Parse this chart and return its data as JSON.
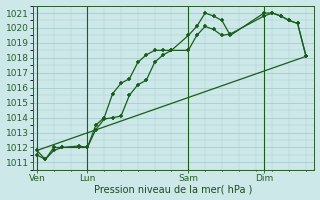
{
  "bg_color": "#cce8e8",
  "grid_color": "#aacccc",
  "line_color": "#1a5c1a",
  "marker_color": "#1a5c1a",
  "xlabel": "Pression niveau de la mer( hPa )",
  "ylim": [
    1010.5,
    1021.5
  ],
  "yticks": [
    1011,
    1012,
    1013,
    1014,
    1015,
    1016,
    1017,
    1018,
    1019,
    1020,
    1021
  ],
  "xtick_labels": [
    "Ven",
    "Lun",
    "Sam",
    "Dim"
  ],
  "vline_x": [
    0,
    6,
    18,
    27
  ],
  "xlim": [
    -0.5,
    33
  ],
  "series1_x": [
    0,
    1,
    2,
    3,
    5,
    6,
    7,
    8,
    9,
    10,
    11,
    12,
    13,
    14,
    15,
    16,
    18,
    19,
    20,
    21,
    22,
    23,
    27,
    28,
    29,
    30,
    31,
    32
  ],
  "series1_y": [
    1011.5,
    1011.2,
    1011.8,
    1012.0,
    1012.1,
    1012.0,
    1013.2,
    1013.9,
    1014.0,
    1014.1,
    1015.5,
    1016.2,
    1016.5,
    1017.7,
    1018.2,
    1018.5,
    1018.5,
    1019.5,
    1020.1,
    1019.9,
    1019.5,
    1019.6,
    1020.8,
    1021.0,
    1020.8,
    1020.5,
    1020.3,
    1018.1
  ],
  "series2_x": [
    0,
    1,
    2,
    3,
    5,
    6,
    7,
    8,
    9,
    10,
    11,
    12,
    13,
    14,
    15,
    16,
    18,
    19,
    20,
    21,
    22,
    23,
    27,
    28,
    29,
    30,
    31,
    32
  ],
  "series2_y": [
    1011.8,
    1011.2,
    1012.0,
    1012.0,
    1012.0,
    1012.0,
    1013.5,
    1014.0,
    1015.6,
    1016.3,
    1016.6,
    1017.7,
    1018.2,
    1018.5,
    1018.5,
    1018.5,
    1019.5,
    1020.1,
    1021.0,
    1020.8,
    1020.5,
    1019.5,
    1021.0,
    1021.0,
    1020.8,
    1020.5,
    1020.3,
    1018.1
  ],
  "series3_x": [
    0,
    32
  ],
  "series3_y": [
    1011.8,
    1018.1
  ]
}
